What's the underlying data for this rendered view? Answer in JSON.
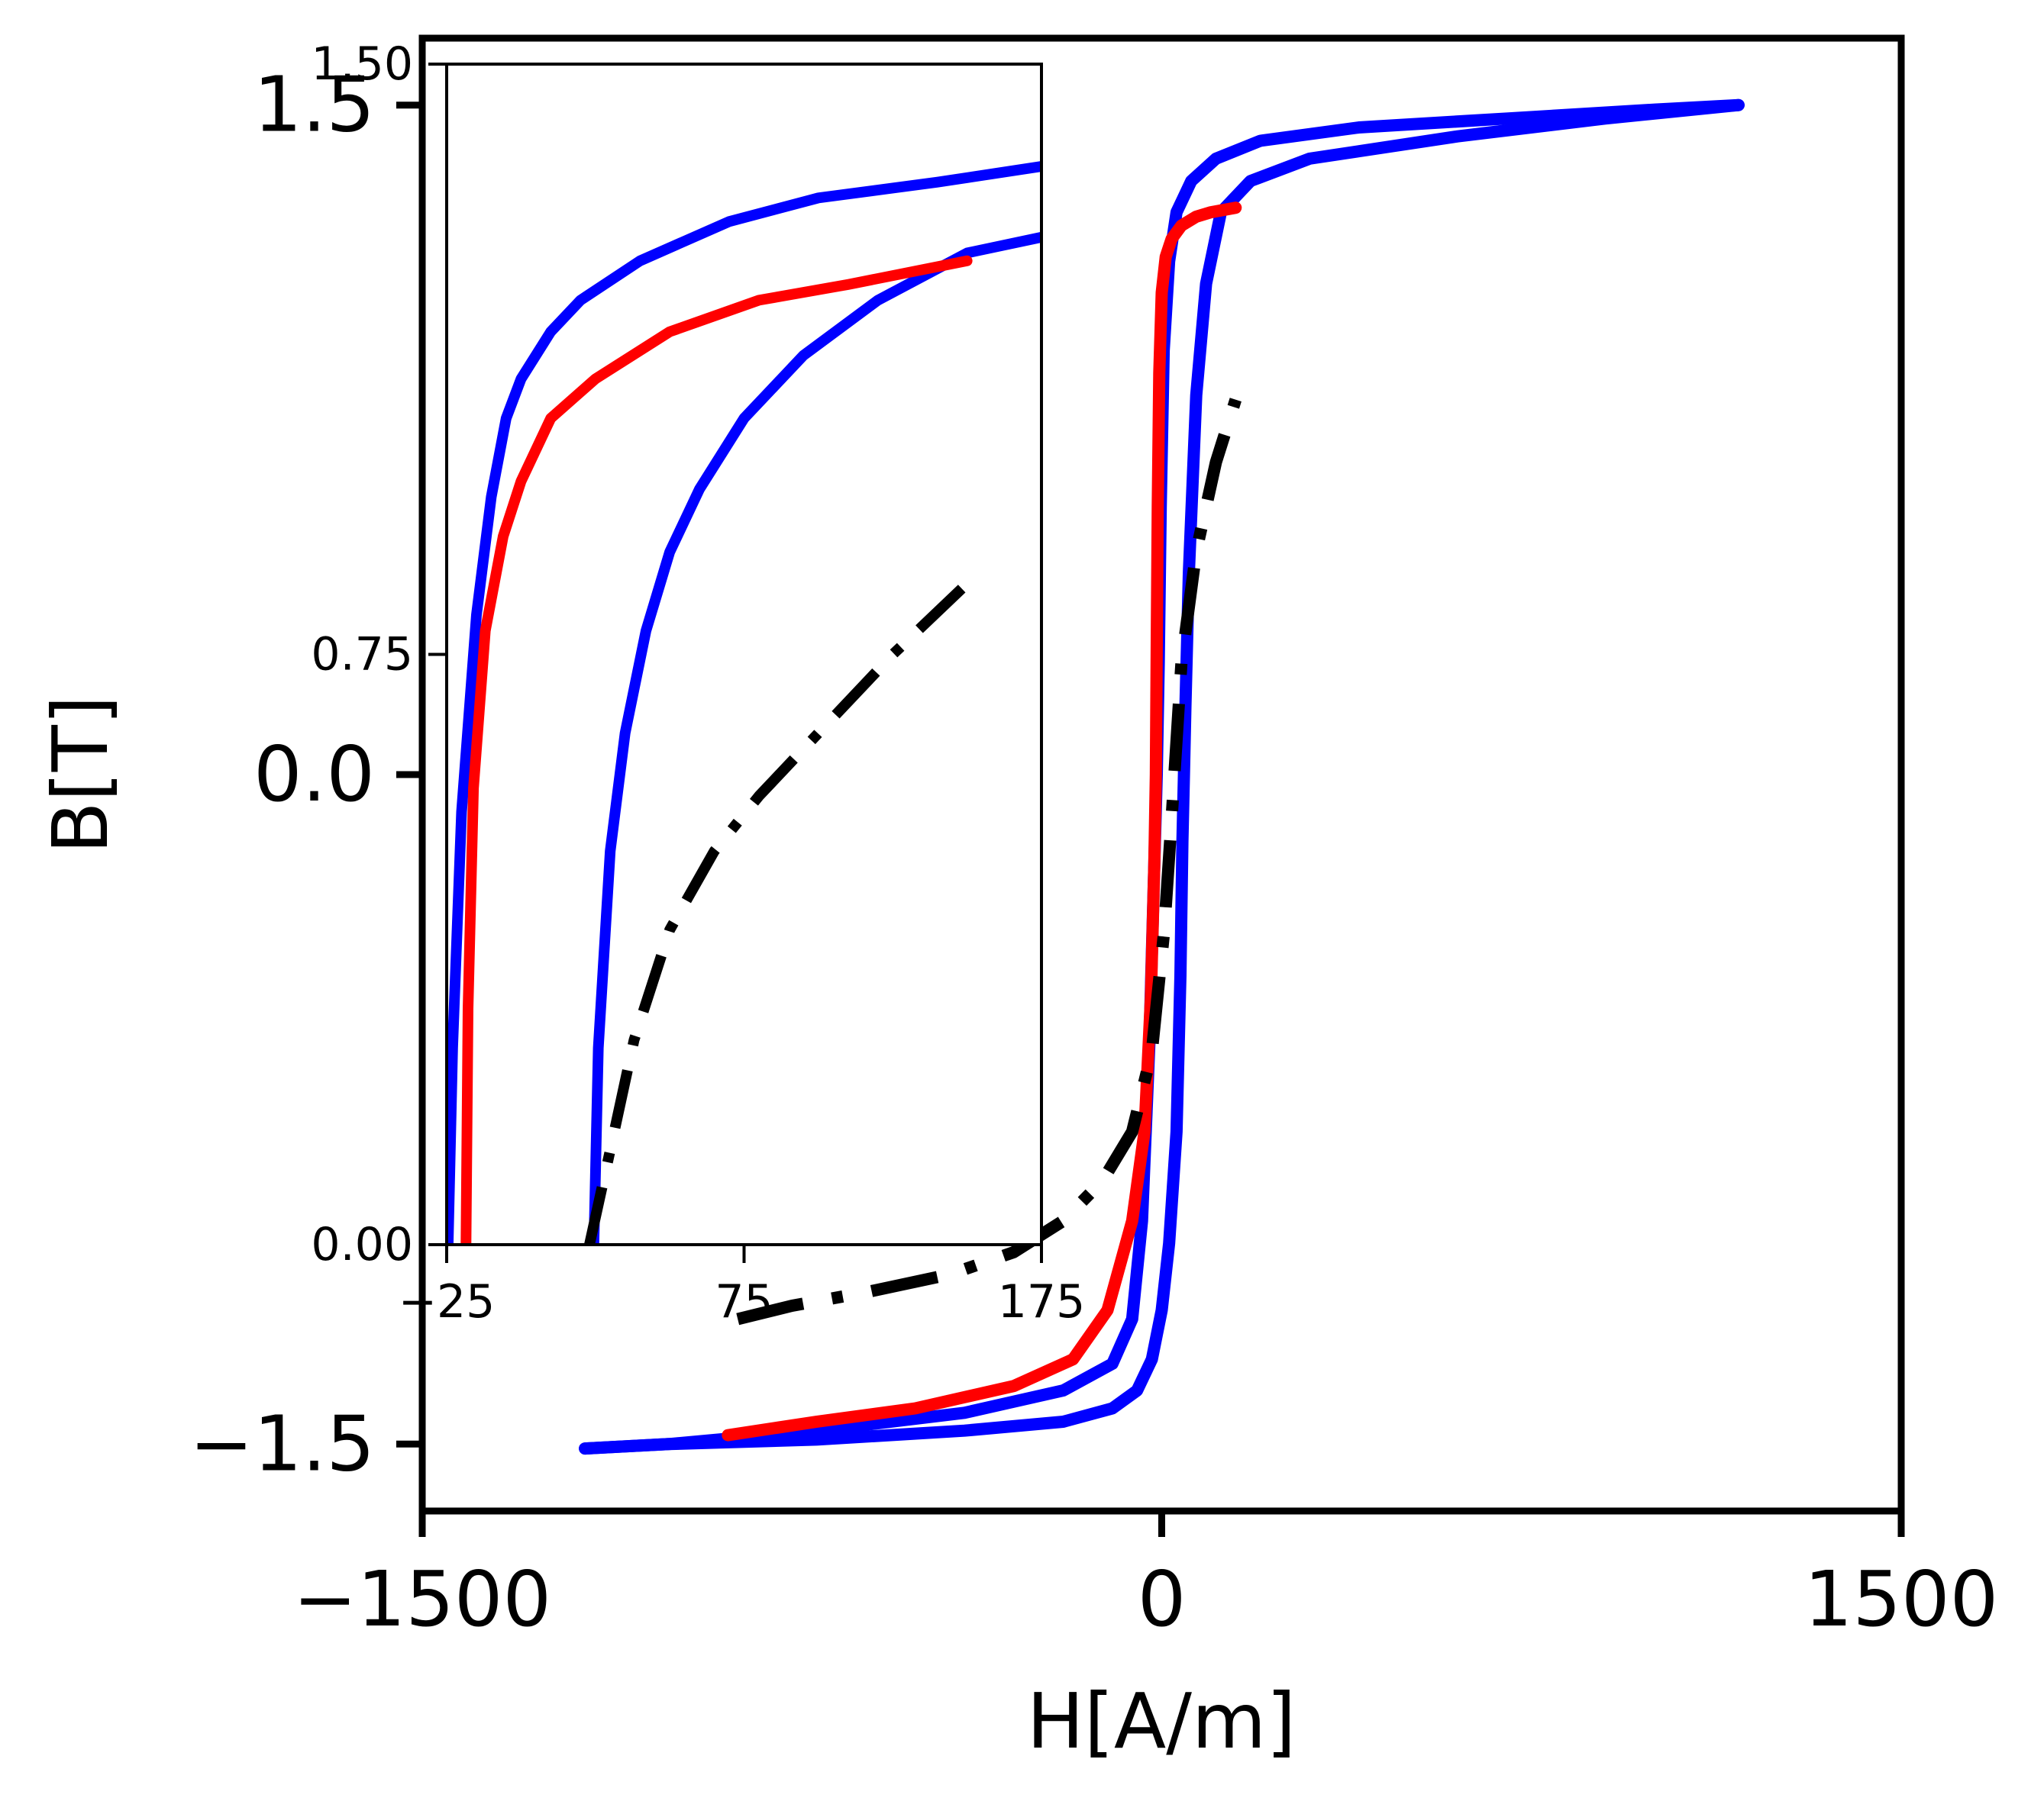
{
  "chart_data": [
    {
      "type": "line",
      "role": "main",
      "xlabel": "H[A/m]",
      "ylabel": "B[T]",
      "xlim": [
        -1500,
        1500
      ],
      "ylim": [
        -1.65,
        1.65
      ],
      "xticks": [
        -1500,
        0,
        1500
      ],
      "xtick_labels": [
        "−1500",
        "0",
        "1500"
      ],
      "yticks": [
        -1.5,
        0.0,
        1.5
      ],
      "ytick_labels": [
        "−1.5",
        "0.0",
        "1.5"
      ],
      "grid": false,
      "series": [
        {
          "color": "#0000ff",
          "style": "solid",
          "x": [
            1170,
            900,
            600,
            300,
            180,
            120,
            90,
            70,
            55,
            48,
            45,
            42,
            38,
            30,
            15,
            0,
            -20,
            -50,
            -100,
            -200,
            -400,
            -700,
            -1000,
            -1170
          ],
          "y": [
            1.5,
            1.47,
            1.43,
            1.38,
            1.33,
            1.26,
            1.1,
            0.85,
            0.45,
            0.15,
            0.0,
            -0.15,
            -0.45,
            -0.8,
            -1.05,
            -1.2,
            -1.31,
            -1.38,
            -1.42,
            -1.45,
            -1.47,
            -1.49,
            -1.5,
            -1.51
          ]
        },
        {
          "color": "#0000ff",
          "style": "solid",
          "x": [
            -1170,
            -1000,
            -700,
            -400,
            -200,
            -100,
            -60,
            -40,
            -25,
            -15,
            -10,
            -6,
            -2,
            4,
            15,
            30,
            60,
            110,
            200,
            400,
            700,
            1000,
            1170
          ],
          "y": [
            -1.51,
            -1.5,
            -1.47,
            -1.43,
            -1.38,
            -1.32,
            -1.22,
            -1.0,
            -0.6,
            -0.2,
            0.0,
            0.25,
            0.6,
            0.95,
            1.15,
            1.26,
            1.33,
            1.38,
            1.42,
            1.45,
            1.47,
            1.49,
            1.5
          ]
        },
        {
          "color": "#ff0000",
          "style": "solid",
          "x": [
            -880,
            -700,
            -500,
            -300,
            -180,
            -110,
            -60,
            -35,
            -22,
            -15,
            -12,
            -10,
            -8,
            -5,
            0,
            8,
            20,
            40,
            70,
            100,
            150
          ],
          "y": [
            -1.48,
            -1.45,
            -1.42,
            -1.37,
            -1.31,
            -1.2,
            -1.0,
            -0.8,
            -0.5,
            -0.2,
            0.0,
            0.3,
            0.6,
            0.9,
            1.08,
            1.16,
            1.2,
            1.23,
            1.25,
            1.26,
            1.27
          ]
        },
        {
          "color": "#000000",
          "style": "dashdot",
          "x": [
            -860,
            -750,
            -600,
            -430,
            -300,
            -200,
            -120,
            -60,
            -20,
            5,
            20,
            40,
            70,
            110,
            150
          ],
          "y": [
            -1.22,
            -1.19,
            -1.16,
            -1.12,
            -1.07,
            -1.0,
            -0.91,
            -0.8,
            -0.62,
            -0.35,
            -0.1,
            0.25,
            0.5,
            0.7,
            0.84
          ]
        }
      ]
    },
    {
      "type": "line",
      "role": "inset",
      "xlim": [
        -25,
        175
      ],
      "ylim": [
        0.0,
        1.5
      ],
      "xticks": [
        -25,
        75,
        175
      ],
      "xtick_labels": [
        "−25",
        "75",
        "175"
      ],
      "yticks": [
        0.0,
        0.75,
        1.5
      ],
      "ytick_labels": [
        "0.00",
        "0.75",
        "1.50"
      ],
      "grid": false,
      "series": [
        {
          "color": "#0000ff",
          "style": "solid",
          "x": [
            -24.5,
            -23,
            -20,
            -15,
            -10,
            -5,
            0,
            10,
            20,
            40,
            70,
            100,
            140,
            175
          ],
          "y": [
            0.0,
            0.25,
            0.55,
            0.8,
            0.95,
            1.05,
            1.1,
            1.16,
            1.2,
            1.25,
            1.3,
            1.33,
            1.35,
            1.37
          ]
        },
        {
          "color": "#0000ff",
          "style": "solid",
          "x": [
            24.5,
            26,
            30,
            35,
            42,
            50,
            60,
            75,
            95,
            120,
            150,
            175
          ],
          "y": [
            0.0,
            0.25,
            0.5,
            0.65,
            0.78,
            0.88,
            0.96,
            1.05,
            1.13,
            1.2,
            1.26,
            1.28
          ]
        },
        {
          "color": "#ff0000",
          "style": "solid",
          "x": [
            -18.5,
            -17.8,
            -16,
            -12,
            -6,
            0,
            10,
            25,
            50,
            80,
            110,
            150
          ],
          "y": [
            0.0,
            0.3,
            0.58,
            0.78,
            0.9,
            0.97,
            1.05,
            1.1,
            1.16,
            1.2,
            1.22,
            1.25
          ]
        },
        {
          "color": "#000000",
          "style": "dashdot",
          "x": [
            23,
            30,
            38,
            50,
            65,
            80,
            100,
            125,
            150
          ],
          "y": [
            0.0,
            0.12,
            0.26,
            0.4,
            0.5,
            0.57,
            0.65,
            0.75,
            0.84
          ]
        }
      ]
    }
  ]
}
